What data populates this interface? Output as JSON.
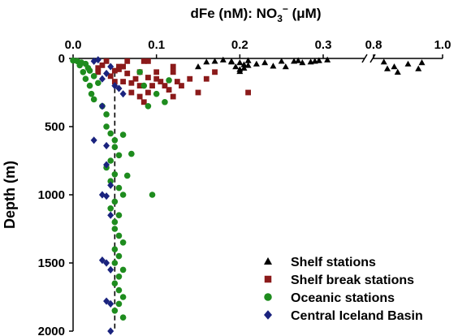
{
  "chart_data": {
    "type": "scatter",
    "title": "dFe (nM): NO3− (μM)",
    "title_parts": {
      "main": "dFe (nM): NO",
      "sub": "3",
      "sup": "−",
      "tail": " (μM)"
    },
    "xlabel": "",
    "ylabel": "Depth (m)",
    "x_axis_position": "top",
    "x_segments": [
      {
        "xlim": [
          0,
          0.3
        ],
        "ticks": [
          "0.0",
          "0.1",
          "0.2",
          "0.3"
        ],
        "tick_values": [
          0,
          0.1,
          0.2,
          0.3
        ]
      },
      {
        "xlim": [
          0.8,
          1.0
        ],
        "ticks": [
          "0.8",
          "1.0"
        ],
        "tick_values": [
          0.8,
          1.0
        ]
      }
    ],
    "axis_break": "between 0.3 and 0.8",
    "ylim": [
      2000,
      0
    ],
    "y_inverted": true,
    "y_ticks": [
      0,
      500,
      1000,
      1500,
      2000
    ],
    "y_tick_labels": [
      "0",
      "500",
      "1000",
      "1500",
      "2000"
    ],
    "grid": false,
    "reference_line": {
      "x": 0.05,
      "style": "dashed",
      "color": "#000000"
    },
    "legend_position": "bottom-right",
    "series": [
      {
        "name": "Shelf stations",
        "marker": "triangle",
        "color": "#000000",
        "points": [
          [
            0.15,
            60
          ],
          [
            0.16,
            25
          ],
          [
            0.17,
            20
          ],
          [
            0.18,
            10
          ],
          [
            0.19,
            20
          ],
          [
            0.19,
            25
          ],
          [
            0.195,
            60
          ],
          [
            0.2,
            30
          ],
          [
            0.2,
            80
          ],
          [
            0.2,
            95
          ],
          [
            0.205,
            45
          ],
          [
            0.205,
            70
          ],
          [
            0.21,
            50
          ],
          [
            0.21,
            15
          ],
          [
            0.22,
            40
          ],
          [
            0.23,
            30
          ],
          [
            0.25,
            20
          ],
          [
            0.255,
            60
          ],
          [
            0.265,
            20
          ],
          [
            0.27,
            15
          ],
          [
            0.275,
            30
          ],
          [
            0.285,
            25
          ],
          [
            0.29,
            20
          ],
          [
            0.295,
            15
          ],
          [
            0.305,
            10
          ],
          [
            0.24,
            55
          ],
          [
            0.83,
            25
          ],
          [
            0.84,
            75
          ],
          [
            0.86,
            60
          ],
          [
            0.87,
            100
          ],
          [
            0.9,
            40
          ],
          [
            0.93,
            75
          ],
          [
            0.94,
            30
          ]
        ]
      },
      {
        "name": "Shelf break stations",
        "marker": "square",
        "color": "#8B1A1A",
        "points": [
          [
            0.03,
            100
          ],
          [
            0.035,
            50
          ],
          [
            0.04,
            20
          ],
          [
            0.045,
            130
          ],
          [
            0.05,
            90
          ],
          [
            0.05,
            170
          ],
          [
            0.055,
            60
          ],
          [
            0.055,
            80
          ],
          [
            0.06,
            60
          ],
          [
            0.06,
            170
          ],
          [
            0.065,
            20
          ],
          [
            0.065,
            110
          ],
          [
            0.07,
            180
          ],
          [
            0.07,
            250
          ],
          [
            0.075,
            150
          ],
          [
            0.08,
            100
          ],
          [
            0.08,
            200
          ],
          [
            0.085,
            20
          ],
          [
            0.09,
            20
          ],
          [
            0.09,
            140
          ],
          [
            0.09,
            250
          ],
          [
            0.095,
            200
          ],
          [
            0.1,
            100
          ],
          [
            0.1,
            150
          ],
          [
            0.105,
            170
          ],
          [
            0.11,
            200
          ],
          [
            0.115,
            230
          ],
          [
            0.12,
            100
          ],
          [
            0.12,
            280
          ],
          [
            0.125,
            170
          ],
          [
            0.13,
            200
          ],
          [
            0.14,
            150
          ],
          [
            0.15,
            250
          ],
          [
            0.16,
            150
          ],
          [
            0.17,
            100
          ],
          [
            0.12,
            60
          ],
          [
            0.21,
            250
          ],
          [
            0.08,
            280
          ],
          [
            0.03,
            70
          ],
          [
            0.085,
            320
          ]
        ]
      },
      {
        "name": "Oceanic stations",
        "marker": "circle",
        "color": "#1E8C1E",
        "points": [
          [
            0.0,
            15
          ],
          [
            0.005,
            20
          ],
          [
            0.008,
            50
          ],
          [
            0.01,
            30
          ],
          [
            0.012,
            100
          ],
          [
            0.015,
            40
          ],
          [
            0.015,
            150
          ],
          [
            0.018,
            70
          ],
          [
            0.02,
            90
          ],
          [
            0.02,
            200
          ],
          [
            0.022,
            260
          ],
          [
            0.025,
            130
          ],
          [
            0.025,
            300
          ],
          [
            0.03,
            180
          ],
          [
            0.035,
            350
          ],
          [
            0.04,
            410
          ],
          [
            0.04,
            500
          ],
          [
            0.045,
            550
          ],
          [
            0.05,
            600
          ],
          [
            0.05,
            650
          ],
          [
            0.055,
            710
          ],
          [
            0.045,
            750
          ],
          [
            0.04,
            800
          ],
          [
            0.05,
            850
          ],
          [
            0.045,
            900
          ],
          [
            0.055,
            950
          ],
          [
            0.06,
            1000
          ],
          [
            0.05,
            1050
          ],
          [
            0.045,
            1100
          ],
          [
            0.055,
            1150
          ],
          [
            0.05,
            1200
          ],
          [
            0.05,
            1250
          ],
          [
            0.055,
            1300
          ],
          [
            0.06,
            1350
          ],
          [
            0.05,
            1400
          ],
          [
            0.055,
            1450
          ],
          [
            0.05,
            1500
          ],
          [
            0.06,
            1550
          ],
          [
            0.055,
            1600
          ],
          [
            0.05,
            1650
          ],
          [
            0.055,
            1700
          ],
          [
            0.06,
            1750
          ],
          [
            0.055,
            1800
          ],
          [
            0.05,
            1850
          ],
          [
            0.06,
            1900
          ],
          [
            0.08,
            100
          ],
          [
            0.085,
            200
          ],
          [
            0.09,
            350
          ],
          [
            0.1,
            260
          ],
          [
            0.11,
            320
          ],
          [
            0.115,
            160
          ],
          [
            0.095,
            1000
          ],
          [
            0.065,
            860
          ],
          [
            0.06,
            560
          ],
          [
            0.07,
            700
          ]
        ]
      },
      {
        "name": "Central Iceland Basin",
        "marker": "diamond",
        "color": "#1A237E",
        "points": [
          [
            0.025,
            20
          ],
          [
            0.03,
            10
          ],
          [
            0.035,
            150
          ],
          [
            0.04,
            110
          ],
          [
            0.045,
            60
          ],
          [
            0.05,
            200
          ],
          [
            0.055,
            220
          ],
          [
            0.06,
            260
          ],
          [
            0.035,
            350
          ],
          [
            0.025,
            600
          ],
          [
            0.04,
            640
          ],
          [
            0.04,
            780
          ],
          [
            0.045,
            930
          ],
          [
            0.035,
            1000
          ],
          [
            0.04,
            1010
          ],
          [
            0.045,
            1150
          ],
          [
            0.035,
            1480
          ],
          [
            0.04,
            1500
          ],
          [
            0.045,
            1550
          ],
          [
            0.04,
            1780
          ],
          [
            0.045,
            1800
          ],
          [
            0.045,
            2000
          ]
        ]
      }
    ]
  }
}
